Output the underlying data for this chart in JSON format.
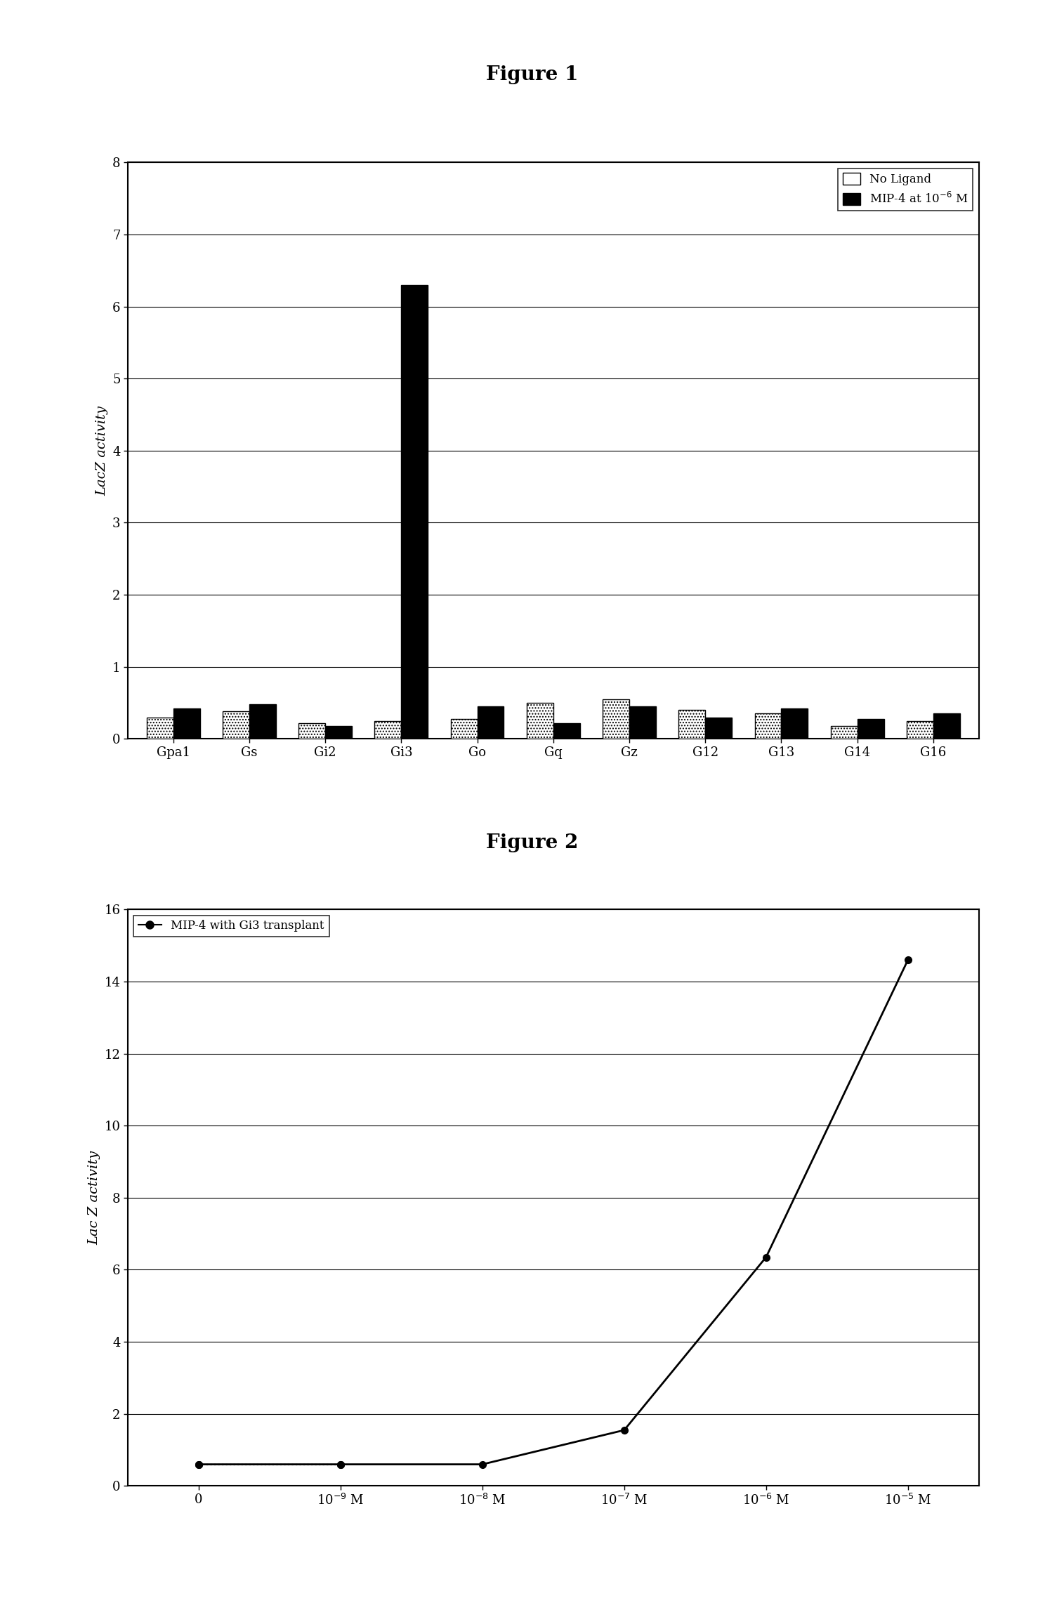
{
  "fig1_title": "Figure 1",
  "fig2_title": "Figure 2",
  "fig1_categories": [
    "Gpa1",
    "Gs",
    "Gi2",
    "Gi3",
    "Go",
    "Gq",
    "Gz",
    "G12",
    "G13",
    "G14",
    "G16"
  ],
  "fig1_no_ligand": [
    0.3,
    0.38,
    0.22,
    0.25,
    0.28,
    0.5,
    0.55,
    0.4,
    0.35,
    0.18,
    0.25
  ],
  "fig1_mip4": [
    0.42,
    0.48,
    0.18,
    6.3,
    0.45,
    0.22,
    0.45,
    0.3,
    0.42,
    0.28,
    0.35
  ],
  "fig1_ylabel": "LacZ activity",
  "fig1_ylim": [
    0,
    8
  ],
  "fig1_yticks": [
    0,
    1,
    2,
    3,
    4,
    5,
    6,
    7,
    8
  ],
  "fig2_x_labels": [
    "0",
    "10$^{-9}$ M",
    "10$^{-8}$ M",
    "10$^{-7}$ M",
    "10$^{-6}$ M",
    "10$^{-5}$ M"
  ],
  "fig2_y_values": [
    0.6,
    0.6,
    0.6,
    1.55,
    6.35,
    14.6
  ],
  "fig2_ylabel": "Lac Z activity",
  "fig2_ylim": [
    0,
    16
  ],
  "fig2_yticks": [
    0,
    2,
    4,
    6,
    8,
    10,
    12,
    14,
    16
  ],
  "fig2_legend": "MIP-4 with Gi3 transplant",
  "legend1_noligand": "No Ligand",
  "legend1_mip4": "MIP-4 at 10$^{-6}$ M",
  "background_color": "#ffffff",
  "bar_color_noligand": "#ffffff",
  "bar_color_mip4": "#000000",
  "line_color": "#000000"
}
